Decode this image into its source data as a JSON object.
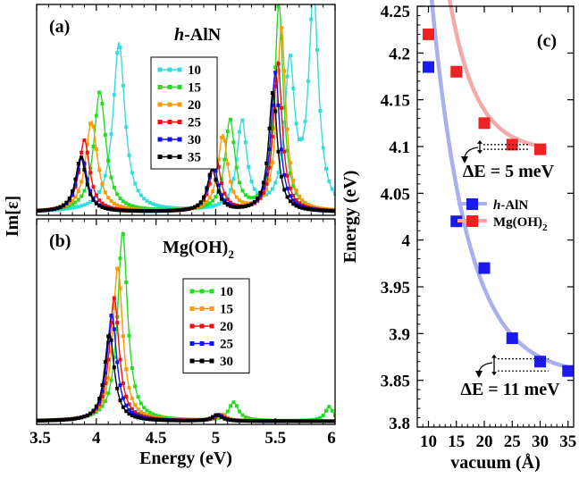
{
  "chart_data": [
    {
      "type": "line",
      "panel_label": "(a)",
      "title": "h-AlN",
      "title_italic_part": "h",
      "title_rest": "-AlN",
      "xlabel": "",
      "ylabel": "Im[ε]",
      "xlim": [
        3.5,
        6.0
      ],
      "ylim": [
        0,
        1.0
      ],
      "legend_placement": "center",
      "series": [
        {
          "name": "10",
          "color": "#33dddd",
          "peaks": [
            [
              4.19,
              0.8,
              0.06
            ],
            [
              5.22,
              0.42,
              0.05
            ],
            [
              5.62,
              0.68,
              0.05
            ],
            [
              5.82,
              1.0,
              0.05
            ]
          ]
        },
        {
          "name": "15",
          "color": "#22dd22",
          "peaks": [
            [
              4.03,
              0.57,
              0.06
            ],
            [
              5.12,
              0.43,
              0.05
            ],
            [
              5.53,
              0.98,
              0.045
            ]
          ]
        },
        {
          "name": "20",
          "color": "#ff9900",
          "peaks": [
            [
              3.96,
              0.43,
              0.06
            ],
            [
              5.06,
              0.36,
              0.05
            ],
            [
              5.55,
              0.87,
              0.045
            ]
          ]
        },
        {
          "name": "25",
          "color": "#ee1111",
          "peaks": [
            [
              3.9,
              0.34,
              0.055
            ],
            [
              5.0,
              0.26,
              0.05
            ],
            [
              5.52,
              0.71,
              0.045
            ]
          ]
        },
        {
          "name": "30",
          "color": "#1111ee",
          "peaks": [
            [
              3.88,
              0.26,
              0.055
            ],
            [
              4.98,
              0.22,
              0.05
            ],
            [
              5.5,
              0.66,
              0.045
            ]
          ]
        },
        {
          "name": "35",
          "color": "#000000",
          "peaks": [
            [
              3.87,
              0.26,
              0.055
            ],
            [
              4.97,
              0.2,
              0.05
            ],
            [
              5.48,
              0.57,
              0.045
            ]
          ]
        }
      ]
    },
    {
      "type": "line",
      "panel_label": "(b)",
      "title": "Mg(OH)",
      "title_sub": "2",
      "xlabel": "Energy (eV)",
      "ylabel": "Im[ε]",
      "xlim": [
        3.5,
        6.0
      ],
      "xticks": [
        "3.5",
        "4",
        "4.5",
        "5",
        "5.5",
        "6"
      ],
      "ylim": [
        0,
        1.0
      ],
      "legend_placement": "center-right",
      "series": [
        {
          "name": "10",
          "color": "#22dd22",
          "peaks": [
            [
              4.22,
              0.92,
              0.05
            ],
            [
              5.15,
              0.09,
              0.05
            ],
            [
              5.95,
              0.07,
              0.04
            ]
          ]
        },
        {
          "name": "15",
          "color": "#ff9900",
          "peaks": [
            [
              4.18,
              0.75,
              0.05
            ],
            [
              5.05,
              0.03,
              0.05
            ]
          ]
        },
        {
          "name": "20",
          "color": "#ee1111",
          "peaks": [
            [
              4.15,
              0.6,
              0.05
            ],
            [
              5.03,
              0.03,
              0.05
            ]
          ]
        },
        {
          "name": "25",
          "color": "#1111ee",
          "peaks": [
            [
              4.13,
              0.52,
              0.05
            ],
            [
              5.02,
              0.03,
              0.05
            ]
          ]
        },
        {
          "name": "30",
          "color": "#000000",
          "peaks": [
            [
              4.11,
              0.43,
              0.05
            ],
            [
              5.01,
              0.03,
              0.05
            ]
          ]
        }
      ]
    },
    {
      "type": "scatter",
      "panel_label": "(c)",
      "title": "",
      "xlabel": "vacuum (Å)",
      "ylabel": "Energy (eV)",
      "xlim": [
        8,
        36
      ],
      "xticks": [
        "10",
        "15",
        "20",
        "25",
        "30",
        "35"
      ],
      "ylim": [
        3.8,
        4.25
      ],
      "yticks": [
        "3.8",
        "3.85",
        "3.9",
        "3.95",
        "4",
        "4.05",
        "4.1",
        "4.15",
        "4.2",
        "4.25"
      ],
      "legend_placement": "center-right",
      "series": [
        {
          "name": "h-AlN",
          "name_italic": "h",
          "name_rest": "-AlN",
          "color": "#1a1aee",
          "fit_color": "#aab0ee",
          "x": [
            10,
            15,
            20,
            25,
            30,
            35
          ],
          "y": [
            4.185,
            4.02,
            3.97,
            3.895,
            3.87,
            3.86
          ]
        },
        {
          "name": "Mg(OH)2",
          "name_base": "Mg(OH)",
          "name_sub": "2",
          "color": "#ee2222",
          "fit_color": "#f4aaaa",
          "x": [
            10,
            15,
            20,
            25,
            30
          ],
          "y": [
            4.22,
            4.18,
            4.125,
            4.102,
            4.097
          ]
        }
      ],
      "annotations": [
        {
          "text": "ΔE = 5 meV",
          "color": "#ee1111"
        },
        {
          "text": "ΔE = 11 meV",
          "color": "#1111ee"
        }
      ]
    }
  ]
}
